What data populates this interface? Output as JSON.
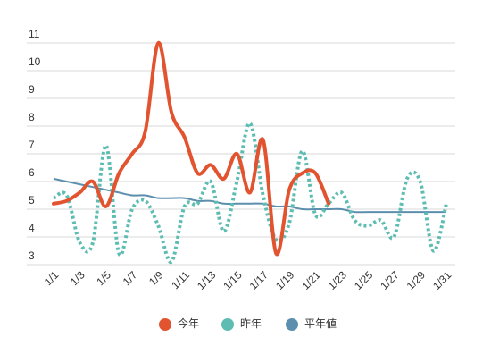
{
  "chart_data": {
    "type": "line",
    "categories": [
      "1/1",
      null,
      "1/3",
      null,
      "1/5",
      null,
      "1/7",
      null,
      "1/9",
      null,
      "1/11",
      null,
      "1/13",
      null,
      "1/15",
      null,
      "1/17",
      null,
      "1/19",
      null,
      "1/21",
      null,
      "1/23",
      null,
      "1/25",
      null,
      "1/27",
      null,
      "1/29",
      null,
      "1/31"
    ],
    "series": [
      {
        "name": "今年",
        "color": "#e2532f",
        "style": "solid",
        "values": [
          5.2,
          5.3,
          5.6,
          6.0,
          5.1,
          6.3,
          7.0,
          7.8,
          11.0,
          8.5,
          7.6,
          6.3,
          6.6,
          6.1,
          7.0,
          5.6,
          7.5,
          3.4,
          5.7,
          6.3,
          6.3,
          5.2,
          null,
          null,
          null,
          null,
          null,
          null,
          null,
          null,
          null
        ]
      },
      {
        "name": "昨年",
        "color": "#5ebdb2",
        "style": "dotted",
        "values": [
          5.4,
          5.5,
          3.8,
          3.8,
          7.3,
          3.4,
          5.0,
          5.3,
          4.4,
          3.1,
          5.1,
          5.2,
          6.0,
          4.2,
          6.0,
          8.1,
          5.5,
          3.9,
          4.5,
          7.1,
          4.8,
          5.2,
          5.6,
          4.6,
          4.4,
          4.6,
          4.0,
          6.1,
          6.0,
          3.5,
          5.2
        ]
      },
      {
        "name": "平年値",
        "color": "#5b8fad",
        "style": "thin",
        "values": [
          6.1,
          6.0,
          5.9,
          5.8,
          5.7,
          5.6,
          5.5,
          5.5,
          5.4,
          5.4,
          5.4,
          5.3,
          5.3,
          5.2,
          5.2,
          5.2,
          5.2,
          5.1,
          5.1,
          5.0,
          5.0,
          5.0,
          5.0,
          4.9,
          4.9,
          4.9,
          4.9,
          4.9,
          4.9,
          4.9,
          4.9
        ]
      }
    ],
    "ylim": [
      3,
      11
    ],
    "yticks": [
      3,
      4,
      5,
      6,
      7,
      8,
      9,
      10,
      11
    ],
    "grid": true,
    "legend": "bottom"
  }
}
